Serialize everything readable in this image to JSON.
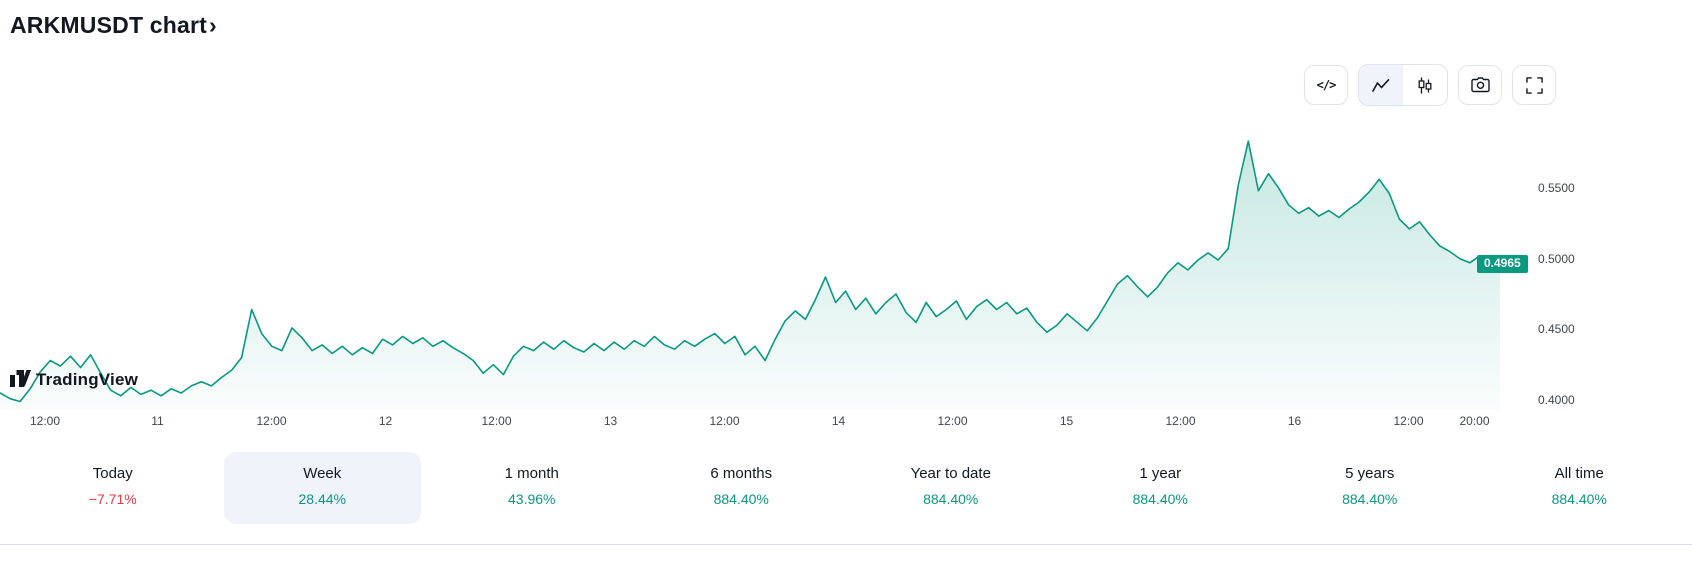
{
  "header": {
    "title": "ARKMUSDT chart",
    "chevron": "›"
  },
  "toolbar": {
    "icons": [
      "code-view",
      "area-chart",
      "candlestick-chart",
      "camera-snapshot",
      "fullscreen"
    ],
    "selected": "area-chart"
  },
  "branding": {
    "logo_text": "TradingView"
  },
  "theme": {
    "positive": "#089981",
    "negative": "#F23645",
    "selected_bg": "#F0F3FA",
    "border": "#E0E3EB"
  },
  "chart_data": {
    "type": "area",
    "symbol": "ARKMUSDT",
    "line_color": "#089981",
    "last_price": 0.4965,
    "last_price_label": "0.4965",
    "ylim": [
      0.393,
      0.605
    ],
    "y_ticks": [
      {
        "value": 0.55,
        "label": "0.5500"
      },
      {
        "value": 0.5,
        "label": "0.5000"
      },
      {
        "value": 0.45,
        "label": "0.4500"
      },
      {
        "value": 0.4,
        "label": "0.4000"
      }
    ],
    "x_ticks": [
      {
        "pos": 0.03,
        "label": "12:00"
      },
      {
        "pos": 0.105,
        "label": "11"
      },
      {
        "pos": 0.181,
        "label": "12:00"
      },
      {
        "pos": 0.257,
        "label": "12"
      },
      {
        "pos": 0.331,
        "label": "12:00"
      },
      {
        "pos": 0.407,
        "label": "13"
      },
      {
        "pos": 0.483,
        "label": "12:00"
      },
      {
        "pos": 0.559,
        "label": "14"
      },
      {
        "pos": 0.635,
        "label": "12:00"
      },
      {
        "pos": 0.711,
        "label": "15"
      },
      {
        "pos": 0.787,
        "label": "12:00"
      },
      {
        "pos": 0.863,
        "label": "16"
      },
      {
        "pos": 0.939,
        "label": "12:00"
      },
      {
        "pos": 0.983,
        "label": "20:00"
      }
    ],
    "values": [
      0.405,
      0.401,
      0.399,
      0.408,
      0.42,
      0.428,
      0.424,
      0.431,
      0.423,
      0.432,
      0.419,
      0.407,
      0.403,
      0.409,
      0.404,
      0.407,
      0.403,
      0.408,
      0.405,
      0.41,
      0.413,
      0.41,
      0.416,
      0.421,
      0.43,
      0.464,
      0.447,
      0.438,
      0.435,
      0.451,
      0.444,
      0.435,
      0.439,
      0.433,
      0.438,
      0.432,
      0.437,
      0.433,
      0.443,
      0.439,
      0.445,
      0.44,
      0.444,
      0.438,
      0.442,
      0.437,
      0.433,
      0.428,
      0.419,
      0.425,
      0.418,
      0.431,
      0.438,
      0.435,
      0.441,
      0.436,
      0.442,
      0.437,
      0.434,
      0.44,
      0.435,
      0.441,
      0.436,
      0.442,
      0.438,
      0.445,
      0.439,
      0.436,
      0.442,
      0.438,
      0.443,
      0.447,
      0.44,
      0.445,
      0.432,
      0.438,
      0.428,
      0.443,
      0.456,
      0.463,
      0.457,
      0.471,
      0.487,
      0.469,
      0.477,
      0.464,
      0.472,
      0.461,
      0.469,
      0.475,
      0.462,
      0.455,
      0.469,
      0.459,
      0.464,
      0.47,
      0.457,
      0.466,
      0.471,
      0.464,
      0.469,
      0.461,
      0.465,
      0.455,
      0.448,
      0.453,
      0.461,
      0.455,
      0.449,
      0.458,
      0.47,
      0.482,
      0.488,
      0.48,
      0.473,
      0.48,
      0.49,
      0.497,
      0.492,
      0.499,
      0.504,
      0.499,
      0.507,
      0.552,
      0.583,
      0.548,
      0.56,
      0.55,
      0.538,
      0.532,
      0.536,
      0.53,
      0.534,
      0.529,
      0.535,
      0.54,
      0.547,
      0.556,
      0.546,
      0.528,
      0.521,
      0.526,
      0.517,
      0.509,
      0.505,
      0.5,
      0.497,
      0.502,
      0.498,
      0.4965
    ]
  },
  "ranges": {
    "items": [
      {
        "label": "Today",
        "value": "−7.71%",
        "negative": true,
        "selected": false
      },
      {
        "label": "Week",
        "value": "28.44%",
        "negative": false,
        "selected": true
      },
      {
        "label": "1 month",
        "value": "43.96%",
        "negative": false,
        "selected": false
      },
      {
        "label": "6 months",
        "value": "884.40%",
        "negative": false,
        "selected": false
      },
      {
        "label": "Year to date",
        "value": "884.40%",
        "negative": false,
        "selected": false
      },
      {
        "label": "1 year",
        "value": "884.40%",
        "negative": false,
        "selected": false
      },
      {
        "label": "5 years",
        "value": "884.40%",
        "negative": false,
        "selected": false
      },
      {
        "label": "All time",
        "value": "884.40%",
        "negative": false,
        "selected": false
      }
    ]
  }
}
